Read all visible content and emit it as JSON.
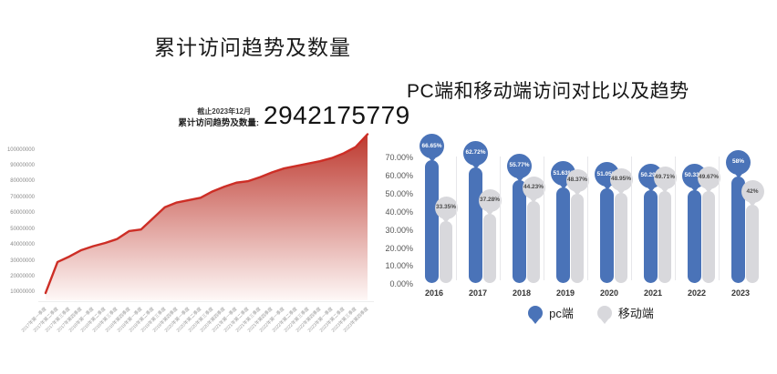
{
  "chart_data": [
    {
      "type": "area",
      "title": "累计访问趋势及数量",
      "annotation": {
        "as_of": "截止2023年12月",
        "label": "累计访问趋势及数量:",
        "value": "2942175779"
      },
      "x": [
        "2017年第一季度",
        "2017年第二季度",
        "2017年第三季度",
        "2017年第四季度",
        "2018年第一季度",
        "2018年第二季度",
        "2018年第三季度",
        "2018年第四季度",
        "2019年第一季度",
        "2019年第二季度",
        "2019年第三季度",
        "2019年第四季度",
        "2020年第一季度",
        "2020年第二季度",
        "2020年第三季度",
        "2020年第四季度",
        "2021年第一季度",
        "2021年第二季度",
        "2021年第三季度",
        "2021年第四季度",
        "2022年第一季度",
        "2022年第二季度",
        "2022年第三季度",
        "2022年第四季度",
        "2023年第一季度",
        "2023年第二季度",
        "2023年第三季度",
        "2023年第四季度"
      ],
      "values": [
        10000000,
        29500000,
        33000000,
        37000000,
        39500000,
        41500000,
        44000000,
        49000000,
        50000000,
        57000000,
        64000000,
        67000000,
        68500000,
        70000000,
        74000000,
        77000000,
        79500000,
        80500000,
        83000000,
        86000000,
        88500000,
        90000000,
        91500000,
        93000000,
        95000000,
        98000000,
        102000000,
        110000000
      ],
      "yticks": [
        "100000000",
        "90000000",
        "80000000",
        "70000000",
        "60000000",
        "50000000",
        "40000000",
        "30000000",
        "20000000",
        "10000000"
      ],
      "ylim": [
        0,
        110000000
      ],
      "grid": false,
      "legend": "none",
      "colors": {
        "line": "#cd2e26",
        "fill_top": "#bd392f",
        "fill_bottom": "#fef8f7"
      }
    },
    {
      "type": "bar",
      "subtype": "lollipop",
      "title": "PC端和移动端访问对比以及趋势",
      "categories": [
        "2016",
        "2017",
        "2018",
        "2019",
        "2020",
        "2021",
        "2022",
        "2023"
      ],
      "series": [
        {
          "name": "pc端",
          "color": "#4a73b8",
          "values": [
            66.65,
            62.72,
            55.77,
            51.63,
            51.05,
            50.29,
            50.33,
            58
          ],
          "labels": [
            "66.65%",
            "62.72%",
            "55.77%",
            "51.63%",
            "51.05%",
            "50.29%",
            "50.33%",
            "58%"
          ]
        },
        {
          "name": "移动端",
          "color": "#d8d8dc",
          "values": [
            33.35,
            37.28,
            44.23,
            48.37,
            48.95,
            49.71,
            49.67,
            42
          ],
          "labels": [
            "33.35%",
            "37.28%",
            "44.23%",
            "48.37%",
            "48.95%",
            "49.71%",
            "49.67%",
            "42%"
          ]
        }
      ],
      "yticks": [
        "70.00%",
        "60.00%",
        "50.00%",
        "40.00%",
        "30.00%",
        "20.00%",
        "10.00%",
        "0.00%"
      ],
      "ylim": [
        0,
        70
      ],
      "grid": false,
      "legend_position": "bottom"
    }
  ]
}
